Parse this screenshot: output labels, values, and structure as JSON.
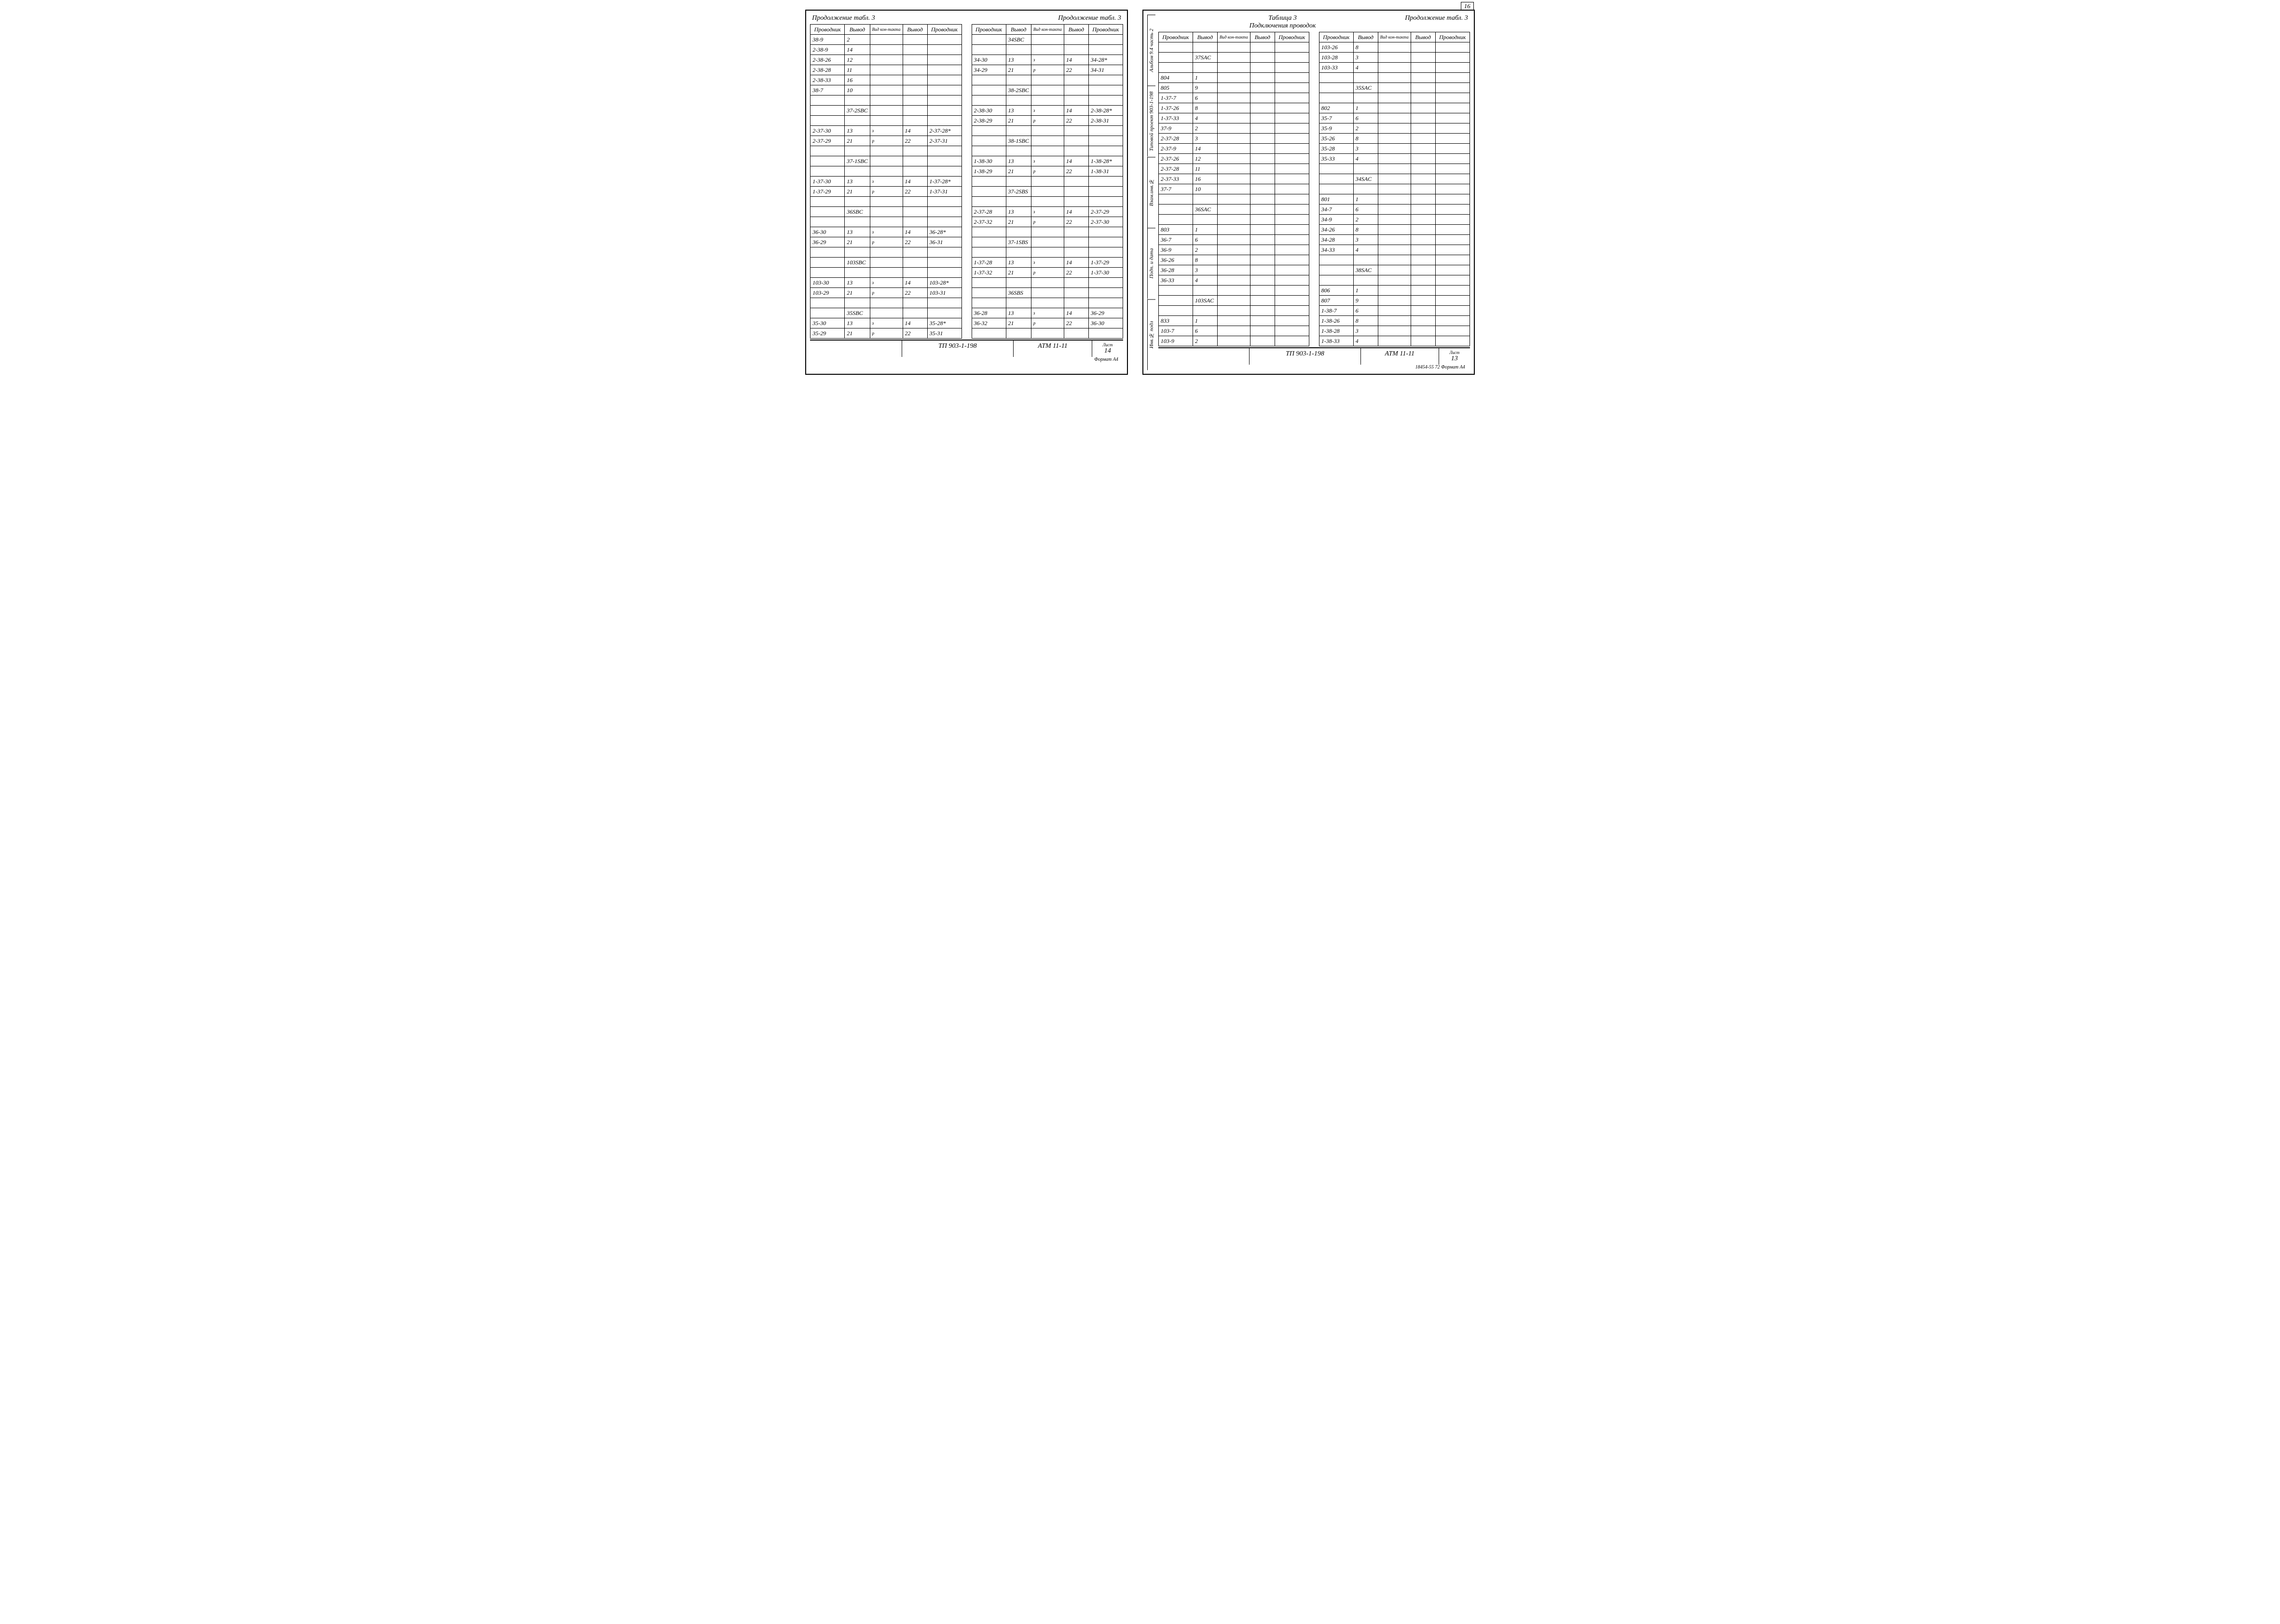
{
  "leftPage": {
    "titleLeft": "Продолжение табл. 3",
    "titleRight": "Продолжение табл. 3",
    "headers": [
      "Проводник",
      "Вывод",
      "Вид кон-такта",
      "Вывод",
      "Проводник"
    ],
    "tableA": [
      [
        "38-9",
        "2",
        "",
        "",
        ""
      ],
      [
        "2-38-9",
        "14",
        "",
        "",
        ""
      ],
      [
        "2-38-26",
        "12",
        "",
        "",
        ""
      ],
      [
        "2-38-28",
        "11",
        "",
        "",
        ""
      ],
      [
        "2-38-33",
        "16",
        "",
        "",
        ""
      ],
      [
        "38-7",
        "10",
        "",
        "",
        ""
      ],
      [
        "",
        "",
        "",
        "",
        ""
      ],
      [
        "",
        "37-2SBC",
        "",
        "",
        ""
      ],
      [
        "",
        "",
        "",
        "",
        ""
      ],
      [
        "2-37-30",
        "13",
        "з",
        "14",
        "2-37-28*"
      ],
      [
        "2-37-29",
        "21",
        "р",
        "22",
        "2-37-31"
      ],
      [
        "",
        "",
        "",
        "",
        ""
      ],
      [
        "",
        "37-1SBC",
        "",
        "",
        ""
      ],
      [
        "",
        "",
        "",
        "",
        ""
      ],
      [
        "1-37-30",
        "13",
        "з",
        "14",
        "1-37-28*"
      ],
      [
        "1-37-29",
        "21",
        "р",
        "22",
        "1-37-31"
      ],
      [
        "",
        "",
        "",
        "",
        ""
      ],
      [
        "",
        "36SBC",
        "",
        "",
        ""
      ],
      [
        "",
        "",
        "",
        "",
        ""
      ],
      [
        "36-30",
        "13",
        "з",
        "14",
        "36-28*"
      ],
      [
        "36-29",
        "21",
        "р",
        "22",
        "36-31"
      ],
      [
        "",
        "",
        "",
        "",
        ""
      ],
      [
        "",
        "103SBC",
        "",
        "",
        ""
      ],
      [
        "",
        "",
        "",
        "",
        ""
      ],
      [
        "103-30",
        "13",
        "з",
        "14",
        "103-28*"
      ],
      [
        "103-29",
        "21",
        "р",
        "22",
        "103-31"
      ],
      [
        "",
        "",
        "",
        "",
        ""
      ],
      [
        "",
        "35SBC",
        "",
        "",
        ""
      ],
      [
        "35-30",
        "13",
        "з",
        "14",
        "35-28*"
      ],
      [
        "35-29",
        "21",
        "р",
        "22",
        "35-31"
      ]
    ],
    "tableB": [
      [
        "",
        "34SBC",
        "",
        "",
        ""
      ],
      [
        "",
        "",
        "",
        "",
        ""
      ],
      [
        "34-30",
        "13",
        "з",
        "14",
        "34-28*"
      ],
      [
        "34-29",
        "21",
        "р",
        "22",
        "34-31"
      ],
      [
        "",
        "",
        "",
        "",
        ""
      ],
      [
        "",
        "38-2SBC",
        "",
        "",
        ""
      ],
      [
        "",
        "",
        "",
        "",
        ""
      ],
      [
        "2-38-30",
        "13",
        "з",
        "14",
        "2-38-28*"
      ],
      [
        "2-38-29",
        "21",
        "р",
        "22",
        "2-38-31"
      ],
      [
        "",
        "",
        "",
        "",
        ""
      ],
      [
        "",
        "38-1SBC",
        "",
        "",
        ""
      ],
      [
        "",
        "",
        "",
        "",
        ""
      ],
      [
        "1-38-30",
        "13",
        "з",
        "14",
        "1-38-28*"
      ],
      [
        "1-38-29",
        "21",
        "р",
        "22",
        "1-38-31"
      ],
      [
        "",
        "",
        "",
        "",
        ""
      ],
      [
        "",
        "37-2SBS",
        "",
        "",
        ""
      ],
      [
        "",
        "",
        "",
        "",
        ""
      ],
      [
        "2-37-28",
        "13",
        "з",
        "14",
        "2-37-29"
      ],
      [
        "2-37-32",
        "21",
        "р",
        "22",
        "2-37-30"
      ],
      [
        "",
        "",
        "",
        "",
        ""
      ],
      [
        "",
        "37-1SBS",
        "",
        "",
        ""
      ],
      [
        "",
        "",
        "",
        "",
        ""
      ],
      [
        "1-37-28",
        "13",
        "з",
        "14",
        "1-37-29"
      ],
      [
        "1-37-32",
        "21",
        "р",
        "22",
        "1-37-30"
      ],
      [
        "",
        "",
        "",
        "",
        ""
      ],
      [
        "",
        "36SBS",
        "",
        "",
        ""
      ],
      [
        "",
        "",
        "",
        "",
        ""
      ],
      [
        "36-28",
        "13",
        "з",
        "14",
        "36-29"
      ],
      [
        "36-32",
        "21",
        "р",
        "22",
        "36-30"
      ],
      [
        "",
        "",
        "",
        "",
        ""
      ]
    ],
    "footer": {
      "proj": "ТП 903-1-198",
      "code": "АТМ 11-11",
      "sheetLabel": "Лист",
      "sheet": "14",
      "format": "Формат А4"
    }
  },
  "rightPage": {
    "cornerNum": "16",
    "titleCenter1": "Таблица 3",
    "titleCenter2": "Подключения проводок",
    "titleRight": "Продолжение табл. 3",
    "headers": [
      "Проводник",
      "Вывод",
      "Вид кон-такта",
      "Вывод",
      "Проводник"
    ],
    "vertLabels": {
      "album": "Альбом 9.4 часть 2",
      "proj": "Типовой проект 903-1-198",
      "boxes": [
        "Инв.№ подл",
        "Подп. и дата",
        "Взам.инв.№"
      ]
    },
    "tableC": [
      [
        "",
        "",
        "",
        "",
        ""
      ],
      [
        "",
        "37SAC",
        "",
        "",
        ""
      ],
      [
        "",
        "",
        "",
        "",
        ""
      ],
      [
        "804",
        "1",
        "",
        "",
        ""
      ],
      [
        "805",
        "9",
        "",
        "",
        ""
      ],
      [
        "1-37-7",
        "6",
        "",
        "",
        ""
      ],
      [
        "1-37-26",
        "8",
        "",
        "",
        ""
      ],
      [
        "1-37-33",
        "4",
        "",
        "",
        ""
      ],
      [
        "37-9",
        "2",
        "",
        "",
        ""
      ],
      [
        "2-37-28",
        "3",
        "",
        "",
        ""
      ],
      [
        "2-37-9",
        "14",
        "",
        "",
        ""
      ],
      [
        "2-37-26",
        "12",
        "",
        "",
        ""
      ],
      [
        "2-37-28",
        "11",
        "",
        "",
        ""
      ],
      [
        "2-37-33",
        "16",
        "",
        "",
        ""
      ],
      [
        "37-7",
        "10",
        "",
        "",
        ""
      ],
      [
        "",
        "",
        "",
        "",
        ""
      ],
      [
        "",
        "36SAC",
        "",
        "",
        ""
      ],
      [
        "",
        "",
        "",
        "",
        ""
      ],
      [
        "803",
        "1",
        "",
        "",
        ""
      ],
      [
        "36-7",
        "6",
        "",
        "",
        ""
      ],
      [
        "36-9",
        "2",
        "",
        "",
        ""
      ],
      [
        "36-26",
        "8",
        "",
        "",
        ""
      ],
      [
        "36-28",
        "3",
        "",
        "",
        ""
      ],
      [
        "36-33",
        "4",
        "",
        "",
        ""
      ],
      [
        "",
        "",
        "",
        "",
        ""
      ],
      [
        "",
        "103SAC",
        "",
        "",
        ""
      ],
      [
        "",
        "",
        "",
        "",
        ""
      ],
      [
        "833",
        "1",
        "",
        "",
        ""
      ],
      [
        "103-7",
        "6",
        "",
        "",
        ""
      ],
      [
        "103-9",
        "2",
        "",
        "",
        ""
      ]
    ],
    "tableD": [
      [
        "103-26",
        "8",
        "",
        "",
        ""
      ],
      [
        "103-28",
        "3",
        "",
        "",
        ""
      ],
      [
        "103-33",
        "4",
        "",
        "",
        ""
      ],
      [
        "",
        "",
        "",
        "",
        ""
      ],
      [
        "",
        "35SAC",
        "",
        "",
        ""
      ],
      [
        "",
        "",
        "",
        "",
        ""
      ],
      [
        "802",
        "1",
        "",
        "",
        ""
      ],
      [
        "35-7",
        "6",
        "",
        "",
        ""
      ],
      [
        "35-9",
        "2",
        "",
        "",
        ""
      ],
      [
        "35-26",
        "8",
        "",
        "",
        ""
      ],
      [
        "35-28",
        "3",
        "",
        "",
        ""
      ],
      [
        "35-33",
        "4",
        "",
        "",
        ""
      ],
      [
        "",
        "",
        "",
        "",
        ""
      ],
      [
        "",
        "34SAC",
        "",
        "",
        ""
      ],
      [
        "",
        "",
        "",
        "",
        ""
      ],
      [
        "801",
        "1",
        "",
        "",
        ""
      ],
      [
        "34-7",
        "6",
        "",
        "",
        ""
      ],
      [
        "34-9",
        "2",
        "",
        "",
        ""
      ],
      [
        "34-26",
        "8",
        "",
        "",
        ""
      ],
      [
        "34-28",
        "3",
        "",
        "",
        ""
      ],
      [
        "34-33",
        "4",
        "",
        "",
        ""
      ],
      [
        "",
        "",
        "",
        "",
        ""
      ],
      [
        "",
        "38SAC",
        "",
        "",
        ""
      ],
      [
        "",
        "",
        "",
        "",
        ""
      ],
      [
        "806",
        "1",
        "",
        "",
        ""
      ],
      [
        "807",
        "9",
        "",
        "",
        ""
      ],
      [
        "1-38-7",
        "6",
        "",
        "",
        ""
      ],
      [
        "1-38-26",
        "8",
        "",
        "",
        ""
      ],
      [
        "1-38-28",
        "3",
        "",
        "",
        ""
      ],
      [
        "1-38-33",
        "4",
        "",
        "",
        ""
      ]
    ],
    "footer": {
      "proj": "ТП 903-1-198",
      "code": "АТМ 11-11",
      "sheetLabel": "Лист",
      "sheet": "13",
      "bottom": "18454-55     72   Формат А4"
    }
  }
}
